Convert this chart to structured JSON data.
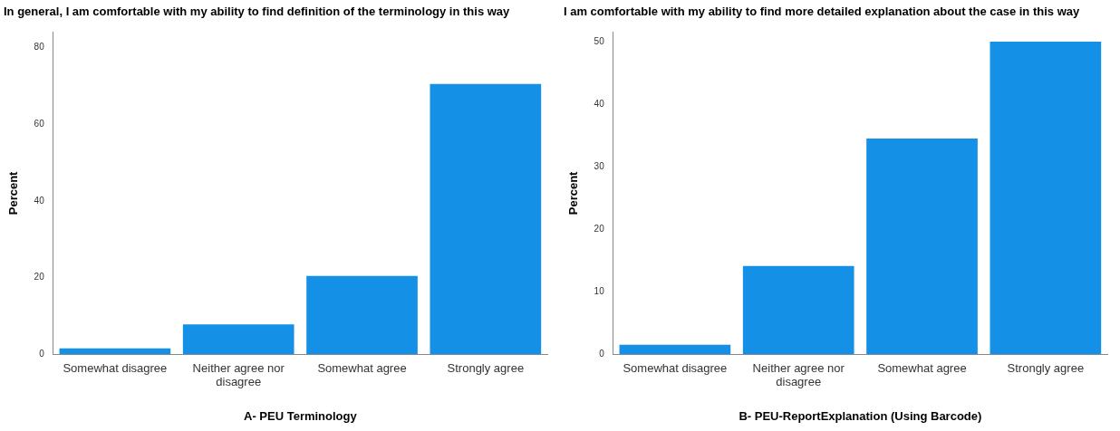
{
  "chart_data": [
    {
      "type": "bar",
      "title": "In general, I am comfortable with my ability to find definition of the terminology in this way",
      "xlabel": "A- PEU Terminology",
      "ylabel": "Percent",
      "categories": [
        "Somewhat disagree",
        "Neither agree nor disagree",
        "Somewhat agree",
        "Strongly agree"
      ],
      "values": [
        1.5,
        7.8,
        20.4,
        70.5
      ],
      "color": "#1490e6",
      "ylim": [
        0,
        84
      ],
      "yticks": [
        0,
        20,
        40,
        60,
        80
      ],
      "grid": false,
      "legend": false
    },
    {
      "type": "bar",
      "title": "I am comfortable with my ability to find more detailed explanation about the case in this way",
      "xlabel": "B- PEU-ReportExplanation (Using Barcode)",
      "ylabel": "Percent",
      "categories": [
        "Somewhat disagree",
        "Neither agree nor disagree",
        "Somewhat agree",
        "Strongly agree"
      ],
      "values": [
        1.5,
        14.1,
        34.5,
        50
      ],
      "color": "#1490e6",
      "ylim": [
        0,
        51.5
      ],
      "yticks": [
        0,
        10,
        20,
        30,
        40,
        50
      ],
      "grid": false,
      "legend": false
    }
  ]
}
